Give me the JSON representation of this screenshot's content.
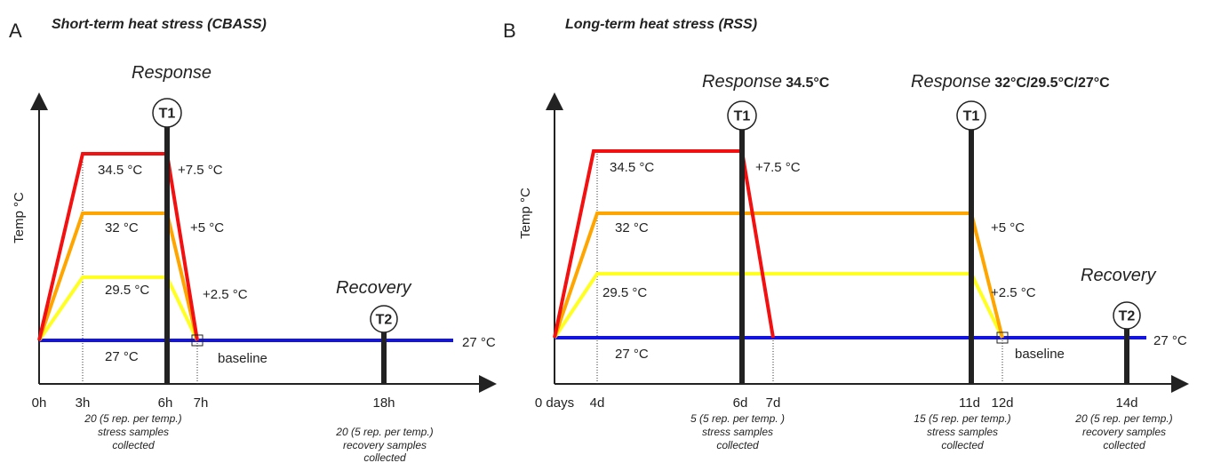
{
  "panels": [
    {
      "letter": "A",
      "title": "Short-term heat stress (CBASS)",
      "y_axis_label": "Temp °C",
      "x_labels": [
        "0h",
        "3h",
        "6h",
        "7h",
        "18h"
      ],
      "response": {
        "phase": "Response"
      },
      "recovery": "Recovery",
      "timepoints": [
        "T1",
        "T2"
      ],
      "temperatures": [
        "34.5 °C",
        "32 °C",
        "29.5 °C",
        "27 °C"
      ],
      "increments": [
        "+7.5 °C",
        "+5 °C",
        "+2.5 °C"
      ],
      "baseline": "baseline",
      "baseline_temp": "27 °C",
      "notes": [
        {
          "lines": [
            "20 (5 rep. per temp.)",
            "stress samples",
            "collected"
          ]
        },
        {
          "lines": [
            "20 (5 rep. per temp.)",
            "recovery samples",
            "collected"
          ]
        }
      ]
    },
    {
      "letter": "B",
      "title": "Long-term heat stress (RSS)",
      "y_axis_label": "Temp °C",
      "x_labels": [
        "0 days",
        "4d",
        "6d",
        "7d",
        "11d",
        "12d",
        "14d"
      ],
      "responses": [
        {
          "phase": "Response",
          "temps": "34.5°C"
        },
        {
          "phase": "Response",
          "temps": "32°C/29.5°C/27°C"
        }
      ],
      "recovery": "Recovery",
      "timepoints": [
        "T1",
        "T1",
        "T2"
      ],
      "temperatures": [
        "34.5 °C",
        "32 °C",
        "29.5 °C",
        "27 °C"
      ],
      "increments": [
        "+7.5 °C",
        "+5 °C",
        "+2.5 °C"
      ],
      "baseline": "baseline",
      "baseline_temp": "27 °C",
      "notes": [
        {
          "lines": [
            "5 (5 rep. per temp. )",
            "stress samples",
            "collected"
          ]
        },
        {
          "lines": [
            "15 (5 rep. per temp.)",
            "stress samples",
            "collected"
          ]
        },
        {
          "lines": [
            "20 (5 rep. per temp.)",
            "recovery samples",
            "collected"
          ]
        }
      ]
    }
  ]
}
